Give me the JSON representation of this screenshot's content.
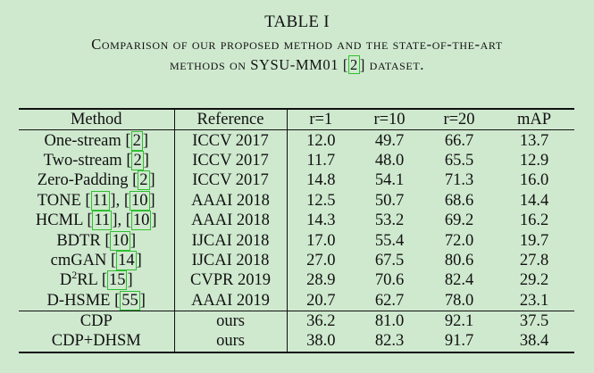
{
  "title": "TABLE I",
  "caption": {
    "line1": "Comparison of our proposed method and the state-of-the-art",
    "line2_pre": "methods on ",
    "line2_dataset": "SYSU-MM01",
    "line2_cite": "2",
    "line2_post": "dataset."
  },
  "header": [
    "Method",
    "Reference",
    "r=1",
    "r=10",
    "r=20",
    "mAP"
  ],
  "rows": [
    {
      "name": "One-stream",
      "cites": [
        "2"
      ],
      "reference": "ICCV 2017",
      "r1": "12.0",
      "r10": "49.7",
      "r20": "66.7",
      "map": "13.7"
    },
    {
      "name": "Two-stream",
      "cites": [
        "2"
      ],
      "reference": "ICCV 2017",
      "r1": "11.7",
      "r10": "48.0",
      "r20": "65.5",
      "map": "12.9"
    },
    {
      "name": "Zero-Padding",
      "cites": [
        "2"
      ],
      "reference": "ICCV 2017",
      "r1": "14.8",
      "r10": "54.1",
      "r20": "71.3",
      "map": "16.0"
    },
    {
      "name": "TONE",
      "cites": [
        "11",
        "10"
      ],
      "reference": "AAAI 2018",
      "r1": "12.5",
      "r10": "50.7",
      "r20": "68.6",
      "map": "14.4"
    },
    {
      "name": "HCML",
      "cites": [
        "11",
        "10"
      ],
      "reference": "AAAI 2018",
      "r1": "14.3",
      "r10": "53.2",
      "r20": "69.2",
      "map": "16.2"
    },
    {
      "name": "BDTR",
      "cites": [
        "10"
      ],
      "reference": "IJCAI 2018",
      "r1": "17.0",
      "r10": "55.4",
      "r20": "72.0",
      "map": "19.7"
    },
    {
      "name": "cmGAN",
      "cites": [
        "14"
      ],
      "reference": "IJCAI 2018",
      "r1": "27.0",
      "r10": "67.5",
      "r20": "80.6",
      "map": "27.8"
    },
    {
      "name": "D",
      "sup": "2",
      "name_suffix": "RL",
      "cites": [
        "15"
      ],
      "reference": "CVPR 2019",
      "r1": "28.9",
      "r10": "70.6",
      "r20": "82.4",
      "map": "29.2"
    },
    {
      "name": "D-HSME",
      "cites": [
        "55"
      ],
      "reference": "AAAI 2019",
      "r1": "20.7",
      "r10": "62.7",
      "r20": "78.0",
      "map": "23.1"
    }
  ],
  "ours": [
    {
      "name": "CDP",
      "reference": "ours",
      "r1": "36.2",
      "r10": "81.0",
      "r20": "92.1",
      "map": "37.5",
      "bold": [
        "r20"
      ]
    },
    {
      "name": "CDP+DHSM",
      "reference": "ours",
      "r1": "38.0",
      "r10": "82.3",
      "r20": "91.7",
      "map": "38.4",
      "bold": [
        "r1",
        "r10",
        "map"
      ]
    }
  ]
}
